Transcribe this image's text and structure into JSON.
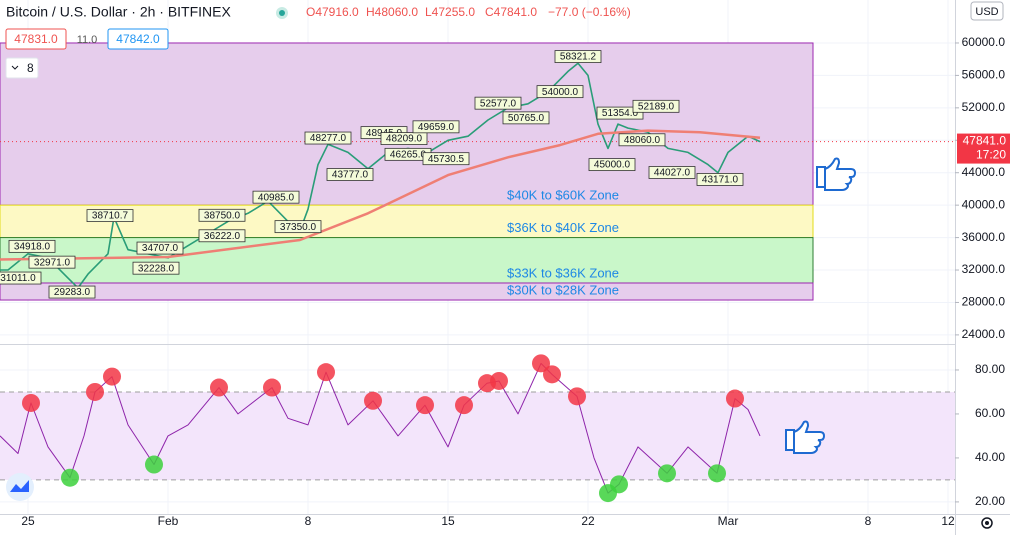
{
  "header": {
    "symbol": "Bitcoin / U.S. Dollar · 2h · BITFINEX",
    "ohlc": [
      "O47916.0",
      "H48060.0",
      "L47255.0",
      "C47841.0",
      "−77.0 (−0.16%)"
    ],
    "bid": "47831.0",
    "spread": "11.0",
    "ask": "47842.0",
    "indicator_count": "8",
    "currency": "USD"
  },
  "chart_data": [
    {
      "type": "line",
      "xlim": [
        -1.4,
        46.35
      ],
      "ylim": [
        23000,
        65300
      ],
      "xticks": [
        {
          "value": 0,
          "label": "25"
        },
        {
          "value": 7,
          "label": "Feb"
        },
        {
          "value": 14,
          "label": "8"
        },
        {
          "value": 21,
          "label": "15"
        },
        {
          "value": 28,
          "label": "22"
        },
        {
          "value": 35,
          "label": "Mar"
        },
        {
          "value": 42,
          "label": "8"
        },
        {
          "value": 46,
          "label": "12"
        }
      ],
      "yticks": [
        {
          "value": 24000,
          "label": "24000.0"
        },
        {
          "value": 28000,
          "label": "28000.0"
        },
        {
          "value": 32000,
          "label": "32000.0"
        },
        {
          "value": 36000,
          "label": "36000.0"
        },
        {
          "value": 40000,
          "label": "40000.0"
        },
        {
          "value": 44000,
          "label": "44000.0"
        },
        {
          "value": 48000,
          "label": "48000.0"
        },
        {
          "value": 52000,
          "label": "52000.0"
        },
        {
          "value": 56000,
          "label": "56000.0"
        },
        {
          "value": 60000,
          "label": "60000.0"
        }
      ],
      "zones": [
        {
          "label": "$40K to $60K Zone",
          "from": 40000,
          "to": 60000,
          "x_end": 39.25,
          "fill": "#e6cdec",
          "border": "#9c27b0"
        },
        {
          "label": "$36K to $40K Zone",
          "from": 36000,
          "to": 40000,
          "x_end": 39.25,
          "fill": "#fdf9c4",
          "border": "#e3dc1a"
        },
        {
          "label": "$33K to $36K Zone",
          "from": 30400,
          "to": 36000,
          "x_end": 39.25,
          "fill": "#c9f7c9",
          "border": "#2e7d32"
        },
        {
          "label": "$30K to $28K Zone",
          "from": 28300,
          "to": 30400,
          "x_end": 39.25,
          "fill": "#e6cdec",
          "border": "#9c27b0"
        }
      ],
      "series": [
        {
          "color": "#2a9d78",
          "x": [
            -1.4,
            -1,
            0,
            1,
            2,
            2.5,
            3,
            4,
            4.3,
            5,
            6,
            7,
            8,
            9,
            10,
            11,
            12,
            13,
            13.7,
            14,
            14.5,
            15,
            16,
            17,
            18,
            19,
            20,
            21,
            22,
            23,
            24,
            25,
            26,
            27,
            27.5,
            28,
            28.5,
            29,
            29.5,
            30,
            31,
            32,
            33,
            34,
            34.5,
            35,
            36,
            36.6
          ],
          "values": [
            32000,
            32000,
            34000,
            33500,
            31000,
            29800,
            31500,
            34000,
            38500,
            34500,
            34000,
            33500,
            35000,
            36500,
            38000,
            39000,
            40500,
            38000,
            37500,
            39500,
            45000,
            47500,
            46500,
            44500,
            46500,
            47000,
            46500,
            48000,
            48500,
            50500,
            52000,
            52500,
            54000,
            56500,
            57500,
            56000,
            50000,
            47000,
            50000,
            49500,
            49000,
            47000,
            46500,
            45000,
            44000,
            46500,
            48500,
            47841
          ]
        },
        {
          "color": "#ef7f74",
          "x": [
            -1.4,
            7,
            13.6,
            17,
            21,
            24,
            26.6,
            28.5,
            31,
            33.6,
            36.6
          ],
          "values": [
            33300,
            33600,
            35700,
            39000,
            43700,
            45900,
            47400,
            48800,
            49200,
            49000,
            48300
          ]
        }
      ],
      "annotations": [
        {
          "x": 0.2,
          "value": 34918,
          "label": "34918.0"
        },
        {
          "x": 1.2,
          "value": 32971,
          "label": "32971.0"
        },
        {
          "x": -0.5,
          "value": 31011,
          "label": "31011.0"
        },
        {
          "x": 2.2,
          "value": 29283,
          "label": "29283.0"
        },
        {
          "x": 4.1,
          "value": 38710.7,
          "label": "38710.7"
        },
        {
          "x": 6.6,
          "value": 34707,
          "label": "34707.0"
        },
        {
          "x": 6.4,
          "value": 32228,
          "label": "32228.0"
        },
        {
          "x": 9.7,
          "value": 38750,
          "label": "38750.0"
        },
        {
          "x": 9.7,
          "value": 36222,
          "label": "36222.0"
        },
        {
          "x": 12.4,
          "value": 40985,
          "label": "40985.0"
        },
        {
          "x": 13.5,
          "value": 37350,
          "label": "37350.0"
        },
        {
          "x": 15,
          "value": 48277,
          "label": "48277.0"
        },
        {
          "x": 16.1,
          "value": 43777,
          "label": "43777.0"
        },
        {
          "x": 17.8,
          "value": 48945,
          "label": "48945.0"
        },
        {
          "x": 18.8,
          "value": 48209,
          "label": "48209.0"
        },
        {
          "x": 19,
          "value": 46265,
          "label": "46265.0"
        },
        {
          "x": 20.4,
          "value": 49659,
          "label": "49659.0"
        },
        {
          "x": 20.9,
          "value": 45730.5,
          "label": "45730.5"
        },
        {
          "x": 23.5,
          "value": 52577,
          "label": "52577.0"
        },
        {
          "x": 24.9,
          "value": 50765,
          "label": "50765.0"
        },
        {
          "x": 27.5,
          "value": 58321.2,
          "label": "58321.2"
        },
        {
          "x": 26.6,
          "value": 54000,
          "label": "54000.0"
        },
        {
          "x": 29.6,
          "value": 51354,
          "label": "51354.0"
        },
        {
          "x": 31.4,
          "value": 52189,
          "label": "52189.0"
        },
        {
          "x": 29.2,
          "value": 45000,
          "label": "45000.0"
        },
        {
          "x": 30.7,
          "value": 48060,
          "label": "48060.0"
        },
        {
          "x": 32.2,
          "value": 44027,
          "label": "44027.0"
        },
        {
          "x": 34.6,
          "value": 43171,
          "label": "43171.0"
        }
      ],
      "last_price": {
        "value": 47841,
        "label": "47841.0",
        "countdown": "17:20",
        "color": "#f23645"
      }
    },
    {
      "type": "line",
      "xlim": [
        -1.4,
        46.35
      ],
      "ylim": [
        14.5,
        90.9
      ],
      "yticks": [
        {
          "value": 20,
          "label": "20.00"
        },
        {
          "value": 40,
          "label": "40.00"
        },
        {
          "value": 60,
          "label": "60.00"
        },
        {
          "value": 80,
          "label": "80.00"
        }
      ],
      "band": [
        30,
        70
      ],
      "series": [
        {
          "color": "#8e24aa",
          "x": [
            -1.4,
            -0.5,
            0,
            0.15,
            1,
            2.1,
            2.8,
            3.35,
            4.2,
            5,
            6.3,
            7,
            8,
            9.55,
            10.5,
            12.2,
            13,
            14,
            14.9,
            16,
            17.25,
            18.5,
            19.85,
            21,
            21.8,
            22.95,
            23.55,
            24.5,
            25.65,
            26.2,
            27.45,
            28.3,
            29,
            29.55,
            30.5,
            31.95,
            33,
            34.45,
            35.35,
            36,
            36.6
          ],
          "values": [
            50,
            42,
            60,
            65,
            45,
            31,
            50,
            70,
            77,
            55,
            37,
            50,
            55,
            72,
            60,
            72,
            58,
            55,
            79,
            55,
            66,
            50,
            64,
            45,
            64,
            74,
            75,
            60,
            83,
            78,
            68,
            40,
            24,
            28,
            45,
            33,
            45,
            33,
            67,
            62,
            50
          ]
        }
      ],
      "overbought_points": {
        "color": "#f23645",
        "x": [
          0.15,
          3.35,
          4.2,
          9.55,
          12.2,
          14.9,
          17.25,
          19.85,
          21.8,
          22.95,
          23.55,
          25.65,
          26.2,
          27.45,
          35.35
        ],
        "values": [
          65,
          70,
          77,
          72,
          72,
          79,
          66,
          64,
          64,
          74,
          75,
          83,
          78,
          68,
          67
        ]
      },
      "oversold_points": {
        "color": "#3cd13c",
        "x": [
          2.1,
          6.3,
          29,
          29.55,
          31.95,
          34.45
        ],
        "values": [
          31,
          37,
          24,
          28,
          33,
          33
        ]
      }
    }
  ]
}
